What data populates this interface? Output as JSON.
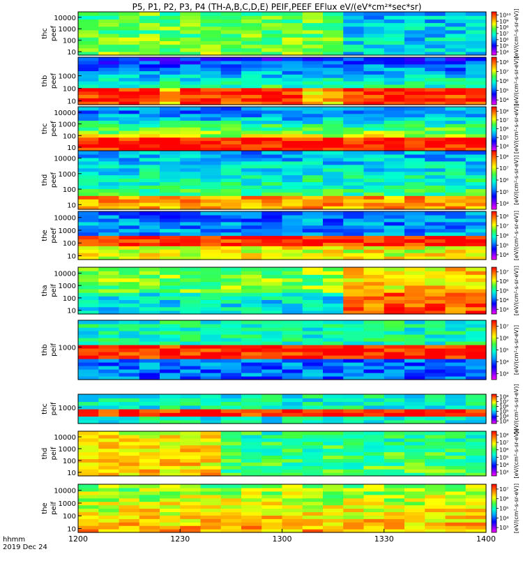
{
  "title": "P5, P1, P2, P3, P4 (TH-A,B,C,D,E) PEIF,PEEF EFlux eV/(eV*cm²*sec*sr)",
  "x_axis": {
    "ticks": [
      "1200",
      "1230",
      "1300",
      "1330",
      "1400"
    ],
    "tick_values": [
      0,
      30,
      60,
      90,
      120
    ],
    "row_label": "hhmm",
    "date_label": "2019 Dec 24"
  },
  "colorbar_label": "[eV/(cm²-s-sr-eV)]",
  "chart_data": {
    "type": "heatmap",
    "x_start": "12:00",
    "x_end": "14:00",
    "panels": [
      {
        "probe": "thc",
        "species": "peef",
        "yticks": [
          "10",
          "100",
          "1000",
          "10000"
        ],
        "cbar_ticks": [
          "10⁴",
          "10⁵",
          "10⁶",
          "10⁷",
          "10⁸",
          "10⁹",
          "10¹⁰"
        ]
      },
      {
        "probe": "thb",
        "species": "peef",
        "yticks": [
          "10",
          "100",
          "1000"
        ],
        "cbar_ticks": [
          "10⁴",
          "10⁵",
          "10⁶",
          "10⁷",
          "10⁸"
        ]
      },
      {
        "probe": "thc",
        "species": "peef",
        "yticks": [
          "10",
          "100",
          "1000",
          "10000"
        ],
        "cbar_ticks": [
          "10⁴",
          "10⁵",
          "10⁶",
          "10⁷",
          "10⁸"
        ]
      },
      {
        "probe": "thd",
        "species": "peef",
        "yticks": [
          "10",
          "100",
          "1000",
          "10000"
        ],
        "cbar_ticks": [
          "10⁴",
          "10⁵",
          "10⁶",
          "10⁷",
          "10⁸"
        ]
      },
      {
        "probe": "the",
        "species": "peef",
        "yticks": [
          "10",
          "100",
          "1000",
          "10000"
        ],
        "cbar_ticks": [
          "10⁴",
          "10⁵",
          "10⁶",
          "10⁷",
          "10⁸"
        ]
      },
      {
        "probe": "tha",
        "species": "peif",
        "yticks": [
          "10",
          "100",
          "1000",
          "10000"
        ],
        "cbar_ticks": [
          "10³",
          "10⁴",
          "10⁵",
          "10⁶",
          "10⁷"
        ]
      },
      {
        "probe": "thb",
        "species": "peif",
        "yticks": [
          "1000"
        ],
        "cbar_ticks": [
          "10³",
          "10⁴",
          "10⁵",
          "10⁶",
          "10⁷"
        ]
      },
      {
        "probe": "thc",
        "species": "peif",
        "yticks": [
          "1000"
        ],
        "cbar_ticks": [
          "10³",
          "10⁴",
          "10⁵",
          "10⁶",
          "10⁷",
          "10⁸"
        ]
      },
      {
        "probe": "thd",
        "species": "peif",
        "yticks": [
          "10",
          "100",
          "1000",
          "10000"
        ],
        "cbar_ticks": [
          "10³",
          "10⁴",
          "10⁵",
          "10⁶",
          "10⁷",
          "10⁸"
        ]
      },
      {
        "probe": "the",
        "species": "peif",
        "yticks": [
          "10",
          "100",
          "1000",
          "10000"
        ],
        "cbar_ticks": [
          "10³",
          "10⁴",
          "10⁵",
          "10⁶",
          "10⁷"
        ]
      }
    ]
  }
}
